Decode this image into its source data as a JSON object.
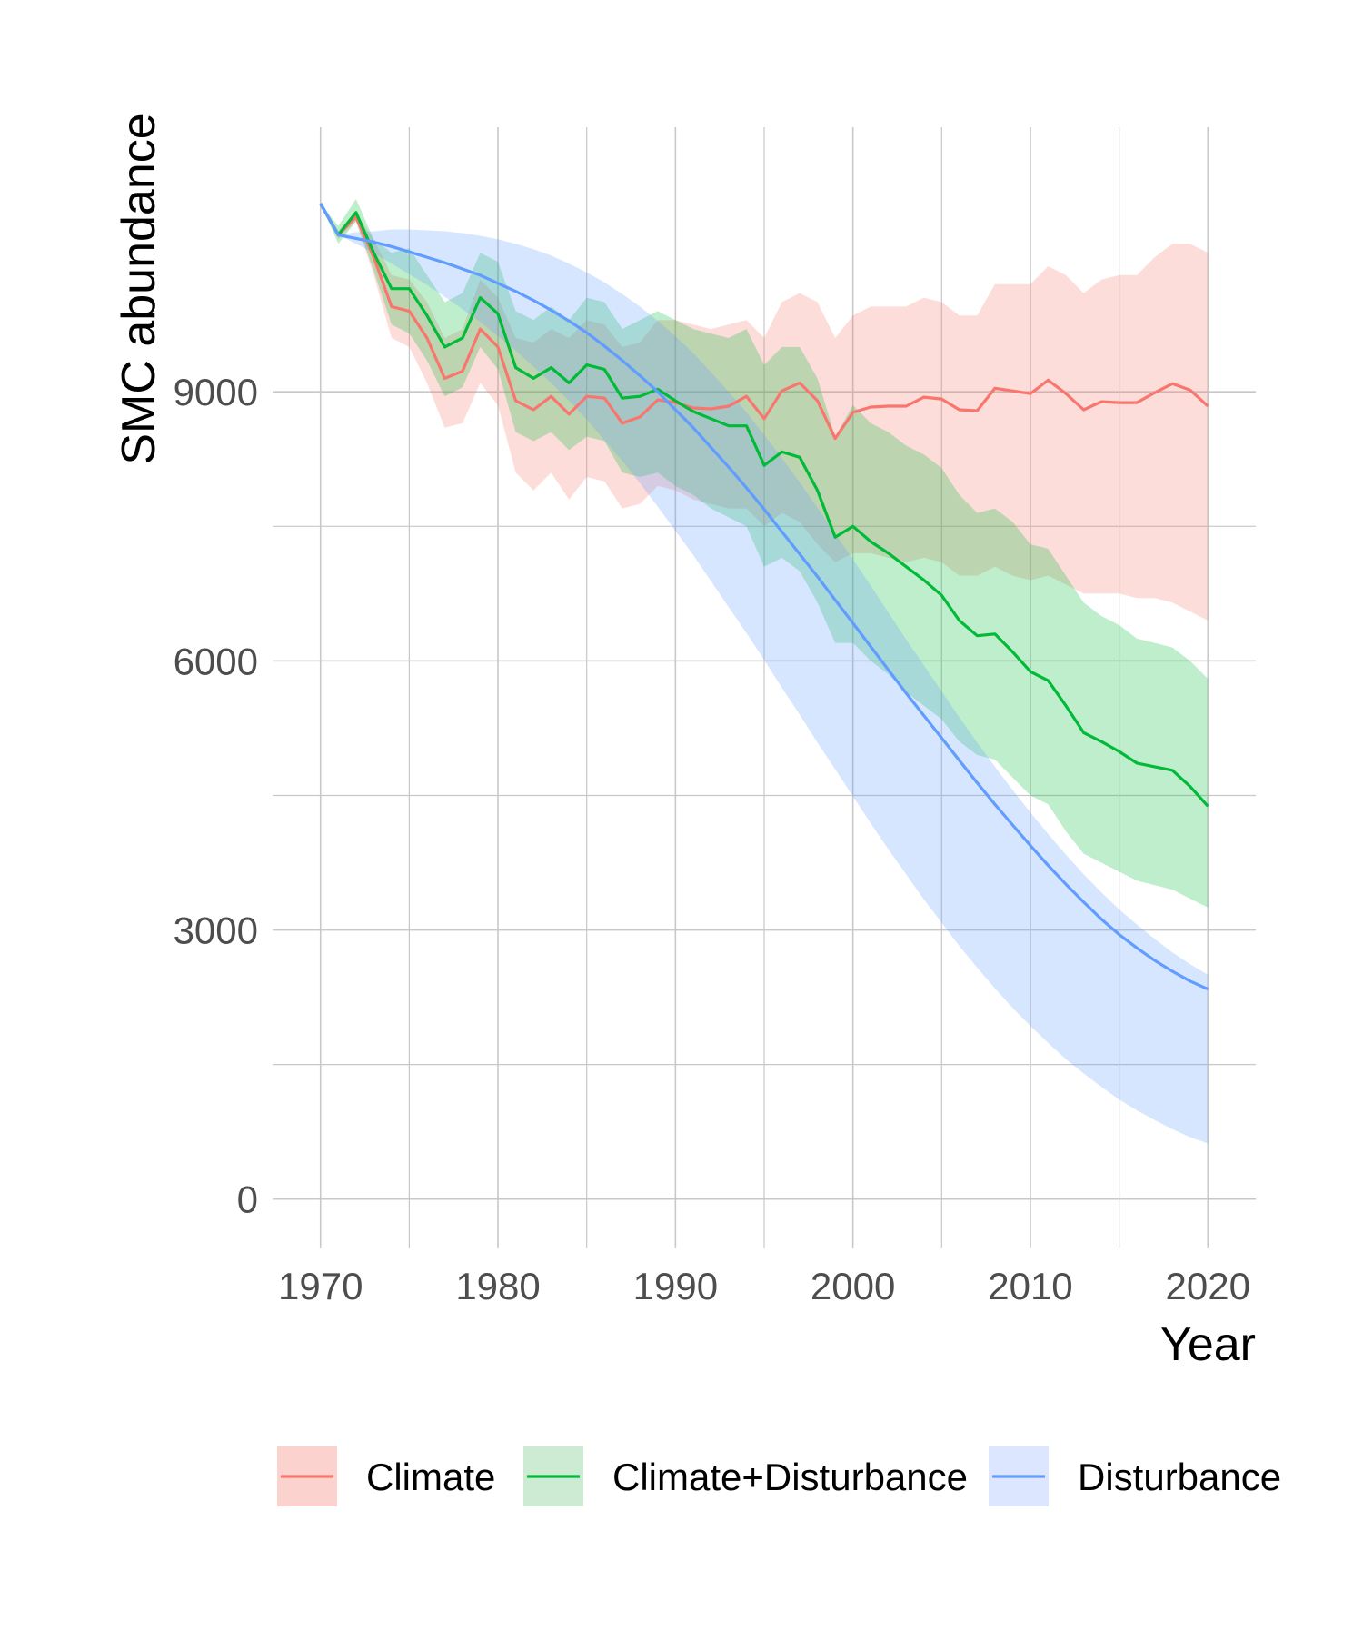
{
  "chart_data": {
    "type": "line",
    "xlabel": "Year",
    "ylabel": "SMC abundance",
    "xlim": [
      1967.3,
      2022.7
    ],
    "ylim": [
      -550,
      11950
    ],
    "x_ticks": [
      1970,
      1980,
      1990,
      2000,
      2010,
      2020
    ],
    "x_tick_labels": [
      "1970",
      "1980",
      "1990",
      "2000",
      "2010",
      "2020"
    ],
    "y_ticks": [
      0,
      3000,
      6000,
      9000
    ],
    "y_tick_labels": [
      "0",
      "3000",
      "6000",
      "9000"
    ],
    "grid": true,
    "legend_position": "bottom",
    "series": [
      {
        "name": "Climate",
        "color": "#F8766D",
        "x": [
          1970,
          1971,
          1972,
          1973,
          1974,
          1975,
          1976,
          1977,
          1978,
          1979,
          1980,
          1981,
          1982,
          1983,
          1984,
          1985,
          1986,
          1987,
          1988,
          1989,
          1990,
          1991,
          1992,
          1993,
          1994,
          1995,
          1996,
          1997,
          1998,
          1999,
          2000,
          2001,
          2002,
          2003,
          2004,
          2005,
          2006,
          2007,
          2008,
          2009,
          2010,
          2011,
          2012,
          2013,
          2014,
          2015,
          2016,
          2017,
          2018,
          2019,
          2020
        ],
        "mean": [
          11100,
          10750,
          10950,
          10500,
          9950,
          9900,
          9600,
          9150,
          9230,
          9700,
          9500,
          8900,
          8800,
          8950,
          8750,
          8950,
          8930,
          8650,
          8720,
          8910,
          8880,
          8820,
          8810,
          8840,
          8950,
          8700,
          9010,
          9100,
          8900,
          8480,
          8770,
          8830,
          8840,
          8840,
          8940,
          8920,
          8800,
          8790,
          9040,
          9010,
          8980,
          9130,
          8980,
          8800,
          8890,
          8880,
          8880,
          8990,
          9090,
          9020,
          8840
        ],
        "lower": [
          11100,
          10700,
          10900,
          10300,
          9600,
          9500,
          9100,
          8600,
          8650,
          9100,
          8850,
          8100,
          7900,
          8100,
          7800,
          8050,
          8000,
          7700,
          7750,
          7950,
          7900,
          7800,
          7750,
          7700,
          7700,
          7500,
          7650,
          7550,
          7300,
          7100,
          7200,
          7200,
          7150,
          7100,
          7150,
          7100,
          6950,
          6950,
          7050,
          6950,
          6900,
          6950,
          6850,
          6750,
          6750,
          6750,
          6700,
          6700,
          6650,
          6550,
          6450
        ],
        "upper": [
          11100,
          10800,
          11000,
          10700,
          10300,
          10250,
          10000,
          9600,
          9700,
          10250,
          10050,
          9600,
          9550,
          9700,
          9600,
          9800,
          9750,
          9500,
          9550,
          9800,
          9800,
          9750,
          9700,
          9750,
          9800,
          9600,
          10000,
          10100,
          10000,
          9600,
          9850,
          9950,
          9950,
          9950,
          10050,
          10000,
          9850,
          9850,
          10200,
          10200,
          10200,
          10400,
          10300,
          10100,
          10250,
          10300,
          10300,
          10500,
          10650,
          10650,
          10550
        ]
      },
      {
        "name": "Climate+Disturbance",
        "color": "#00BA38",
        "x": [
          1970,
          1971,
          1972,
          1973,
          1974,
          1975,
          1976,
          1977,
          1978,
          1979,
          1980,
          1981,
          1982,
          1983,
          1984,
          1985,
          1986,
          1987,
          1988,
          1989,
          1990,
          1991,
          1992,
          1993,
          1994,
          1995,
          1996,
          1997,
          1998,
          1999,
          2000,
          2001,
          2002,
          2003,
          2004,
          2005,
          2006,
          2007,
          2008,
          2009,
          2010,
          2011,
          2012,
          2013,
          2014,
          2015,
          2016,
          2017,
          2018,
          2019,
          2020
        ],
        "mean": [
          11100,
          10750,
          11000,
          10550,
          10150,
          10150,
          9850,
          9500,
          9600,
          10050,
          9870,
          9270,
          9150,
          9270,
          9100,
          9300,
          9250,
          8930,
          8950,
          9030,
          8900,
          8780,
          8700,
          8620,
          8620,
          8180,
          8330,
          8270,
          7900,
          7380,
          7500,
          7330,
          7200,
          7050,
          6900,
          6730,
          6450,
          6280,
          6300,
          6100,
          5880,
          5780,
          5500,
          5200,
          5100,
          4990,
          4860,
          4820,
          4780,
          4600,
          4380
        ],
        "lower": [
          11100,
          10650,
          10900,
          10350,
          9750,
          9650,
          9350,
          8950,
          9050,
          9500,
          9250,
          8550,
          8450,
          8550,
          8350,
          8500,
          8450,
          8100,
          8050,
          8100,
          7950,
          7850,
          7700,
          7600,
          7500,
          7050,
          7150,
          7000,
          6650,
          6200,
          6200,
          6000,
          5850,
          5650,
          5500,
          5350,
          5100,
          4950,
          4900,
          4700,
          4500,
          4400,
          4100,
          3850,
          3750,
          3650,
          3550,
          3500,
          3450,
          3350,
          3250
        ],
        "upper": [
          11100,
          10850,
          11150,
          10700,
          10550,
          10600,
          10300,
          10000,
          10100,
          10550,
          10450,
          9900,
          9800,
          9950,
          9800,
          10050,
          10000,
          9700,
          9800,
          9900,
          9800,
          9700,
          9650,
          9600,
          9700,
          9300,
          9500,
          9500,
          9150,
          8500,
          8850,
          8650,
          8550,
          8400,
          8300,
          8150,
          7850,
          7650,
          7700,
          7550,
          7300,
          7250,
          6950,
          6650,
          6500,
          6400,
          6250,
          6200,
          6150,
          6000,
          5800
        ],
        "band_color": "#9ED6A6"
      },
      {
        "name": "Disturbance",
        "color": "#619CFF",
        "x": [
          1970,
          1971,
          1972,
          1973,
          1974,
          1975,
          1976,
          1977,
          1978,
          1979,
          1980,
          1981,
          1982,
          1983,
          1984,
          1985,
          1986,
          1987,
          1988,
          1989,
          1990,
          1991,
          1992,
          1993,
          1994,
          1995,
          1996,
          1997,
          1998,
          1999,
          2000,
          2001,
          2002,
          2003,
          2004,
          2005,
          2006,
          2007,
          2008,
          2009,
          2010,
          2011,
          2012,
          2013,
          2014,
          2015,
          2016,
          2017,
          2018,
          2019,
          2020
        ],
        "mean": [
          11100,
          10750,
          10710,
          10670,
          10620,
          10560,
          10500,
          10440,
          10370,
          10300,
          10210,
          10120,
          10020,
          9910,
          9790,
          9660,
          9510,
          9350,
          9180,
          9000,
          8800,
          8600,
          8380,
          8160,
          7930,
          7690,
          7440,
          7190,
          6940,
          6680,
          6420,
          6160,
          5900,
          5640,
          5390,
          5140,
          4890,
          4640,
          4400,
          4170,
          3940,
          3720,
          3510,
          3310,
          3120,
          2950,
          2800,
          2660,
          2540,
          2430,
          2340
        ],
        "lower": [
          11100,
          10750,
          10650,
          10550,
          10430,
          10310,
          10190,
          10060,
          9920,
          9780,
          9620,
          9460,
          9280,
          9100,
          8900,
          8690,
          8460,
          8230,
          7980,
          7720,
          7450,
          7180,
          6890,
          6600,
          6310,
          6010,
          5700,
          5400,
          5090,
          4790,
          4490,
          4190,
          3900,
          3620,
          3340,
          3080,
          2820,
          2580,
          2350,
          2130,
          1930,
          1740,
          1560,
          1400,
          1250,
          1110,
          990,
          880,
          780,
          690,
          620
        ],
        "upper": [
          11100,
          10750,
          10780,
          10790,
          10810,
          10810,
          10800,
          10790,
          10770,
          10740,
          10700,
          10650,
          10590,
          10520,
          10430,
          10330,
          10220,
          10090,
          9950,
          9790,
          9620,
          9430,
          9220,
          9000,
          8770,
          8520,
          8260,
          7990,
          7710,
          7420,
          7130,
          6840,
          6540,
          6240,
          5950,
          5660,
          5370,
          5090,
          4820,
          4560,
          4310,
          4070,
          3840,
          3620,
          3420,
          3230,
          3060,
          2900,
          2750,
          2620,
          2500
        ],
        "band_color": "#C9D7FF"
      }
    ],
    "legend": [
      {
        "label": "Climate",
        "line_color": "#F8766D",
        "box_color": "#FCD2CF"
      },
      {
        "label": "Climate+Disturbance",
        "line_color": "#00BA38",
        "box_color": "#CCEBD2"
      },
      {
        "label": "Disturbance",
        "line_color": "#619CFF",
        "box_color": "#DCE6FF"
      }
    ]
  }
}
